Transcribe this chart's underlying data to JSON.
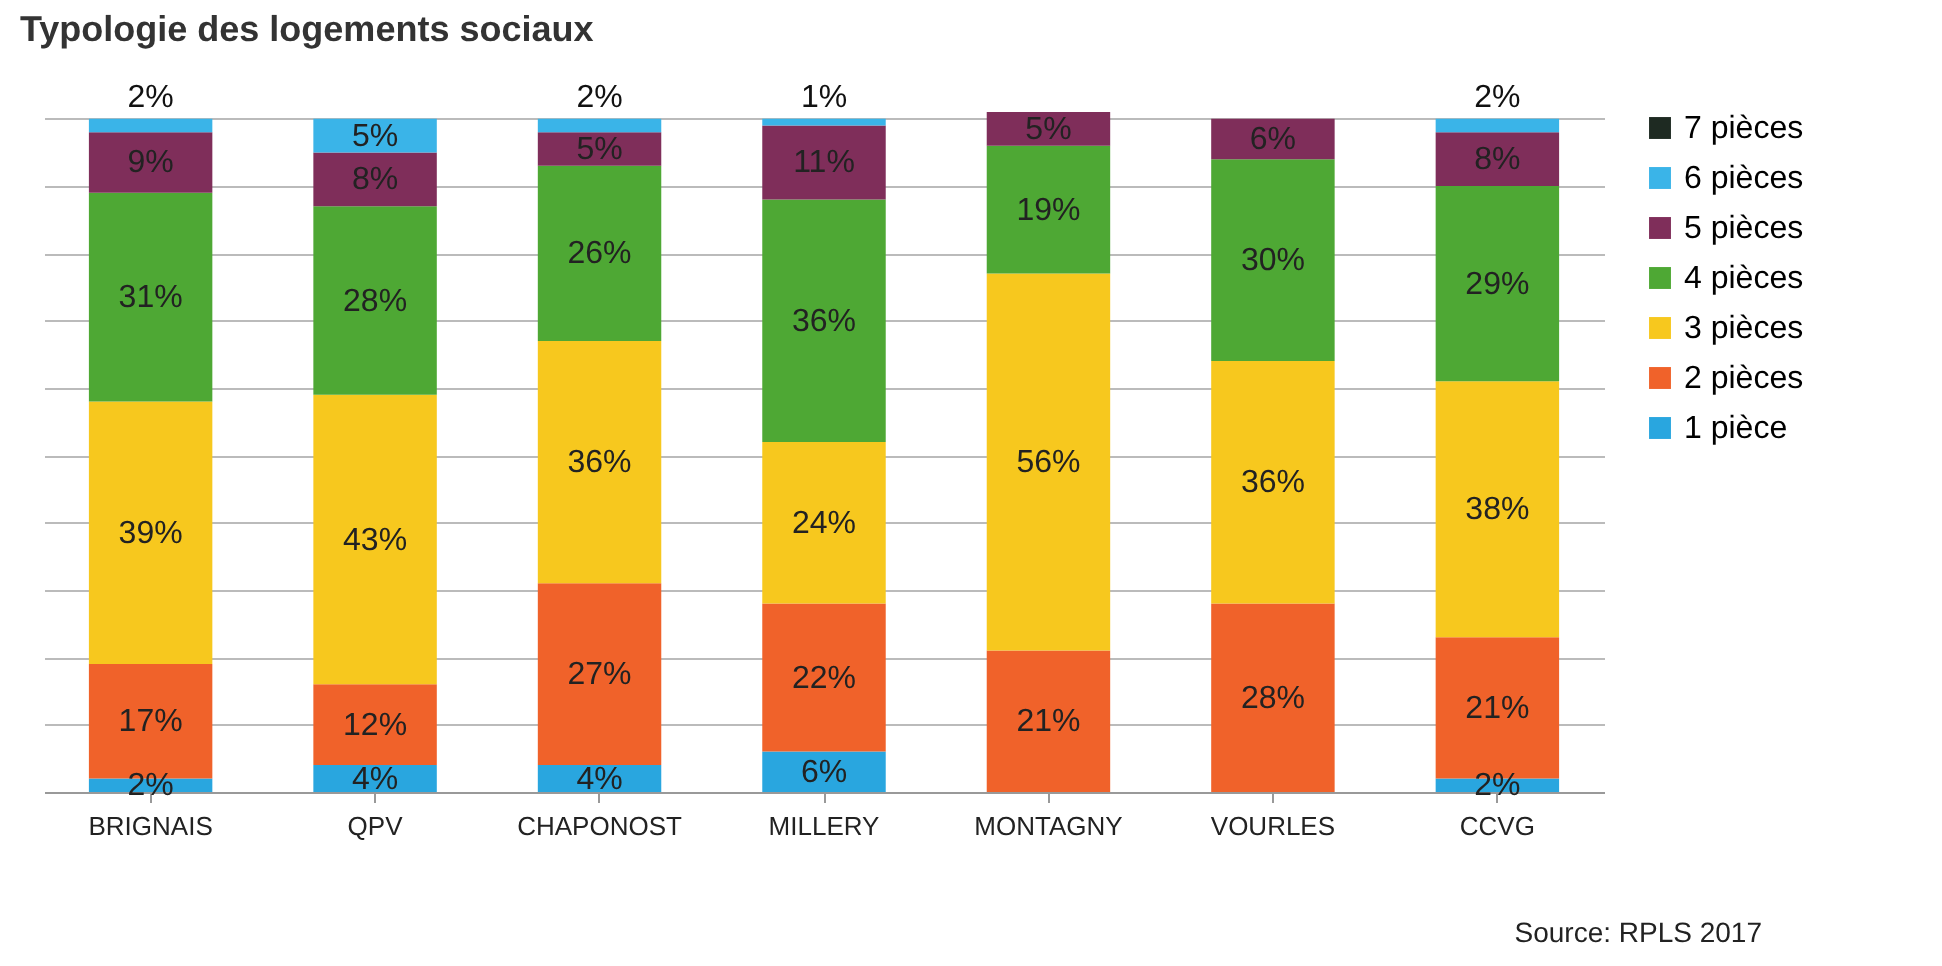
{
  "chart_data": {
    "type": "bar",
    "stacked": true,
    "title": "Typologie des logements sociaux",
    "categories": [
      "BRIGNAIS",
      "QPV",
      "CHAPONOST",
      "MILLERY",
      "MONTAGNY",
      "VOURLES",
      "CCVG"
    ],
    "series": [
      {
        "name": "1 pièce",
        "color": "#29a6df",
        "values": [
          2,
          4,
          4,
          6,
          0,
          0,
          2
        ],
        "value_labels": [
          "2%",
          "4%",
          "4%",
          "6%",
          null,
          null,
          "2%"
        ]
      },
      {
        "name": "2 pièces",
        "color": "#f0622a",
        "values": [
          17,
          12,
          27,
          22,
          21,
          28,
          21
        ],
        "value_labels": [
          "17%",
          "12%",
          "27%",
          "22%",
          "21%",
          "28%",
          "21%"
        ]
      },
      {
        "name": "3 pièces",
        "color": "#f7c81e",
        "values": [
          39,
          43,
          36,
          24,
          56,
          36,
          38
        ],
        "value_labels": [
          "39%",
          "43%",
          "36%",
          "24%",
          "56%",
          "36%",
          "38%"
        ]
      },
      {
        "name": "4 pièces",
        "color": "#4ea834",
        "values": [
          31,
          28,
          26,
          36,
          19,
          30,
          29
        ],
        "value_labels": [
          "31%",
          "28%",
          "26%",
          "36%",
          "19%",
          "30%",
          "29%"
        ]
      },
      {
        "name": "5 pièces",
        "color": "#7f2e5a",
        "values": [
          9,
          8,
          5,
          11,
          5,
          6,
          8
        ],
        "value_labels": [
          "9%",
          "8%",
          "5%",
          "11%",
          "5%",
          "6%",
          "8%"
        ]
      },
      {
        "name": "6 pièces",
        "color": "#3ab4e8",
        "values": [
          2,
          5,
          2,
          1,
          0,
          0,
          2
        ],
        "value_labels": [
          "2%",
          "5%",
          "2%",
          "1%",
          null,
          null,
          "2%"
        ]
      },
      {
        "name": "7 pièces",
        "color": "#1e2a22",
        "values": [
          0,
          0,
          0,
          0,
          0,
          0,
          0
        ],
        "value_labels": [
          null,
          null,
          null,
          null,
          null,
          null,
          null
        ]
      }
    ],
    "tick_labels": "x",
    "grid": "y",
    "legend": "right",
    "annotations": [
      "Source: RPLS 2017"
    ]
  }
}
